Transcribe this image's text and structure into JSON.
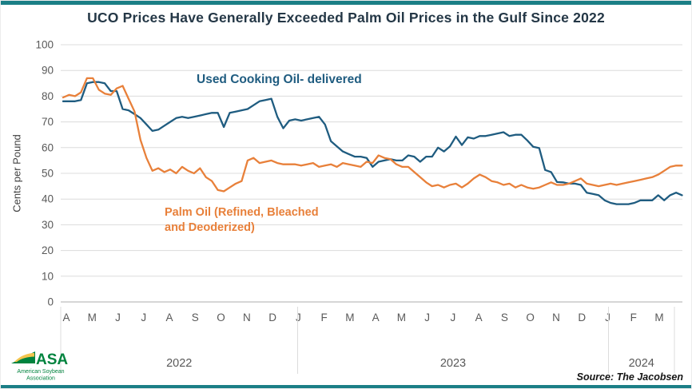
{
  "header": {
    "title": "UCO Prices Have Generally Exceeded Palm Oil Prices in the Gulf Since 2022"
  },
  "footer": {
    "source": "Source: The Jacobsen"
  },
  "logo": {
    "acronym": "ASA",
    "line1": "American Soybean",
    "line2": "Association"
  },
  "annotations": {
    "uco_label": "Used Cooking Oil- delivered",
    "palm_label_line1": "Palm Oil (Refined, Bleached",
    "palm_label_line2": "and Deoderized)"
  },
  "colors": {
    "uco": "#1F5C80",
    "palm": "#E8803A",
    "teal_border": "#1B7F86",
    "title_text": "#243746",
    "grid": "#DCDCDC",
    "axis_line": "#ADADAD",
    "axis_text": "#595959",
    "logo_green": "#00833E",
    "logo_gold": "#F4C54D"
  },
  "chart_data": {
    "type": "line",
    "title": "UCO Prices Have Generally Exceeded Palm Oil Prices in the Gulf Since 2022",
    "xlabel": "",
    "ylabel": "Cents per Pound",
    "ylim": [
      0,
      100
    ],
    "ytick_step": 10,
    "grid": true,
    "legend_position": "inline-annotations",
    "x_tick_labels": [
      "A",
      "M",
      "J",
      "J",
      "A",
      "S",
      "O",
      "N",
      "D",
      "J",
      "F",
      "M",
      "A",
      "M",
      "J",
      "J",
      "A",
      "S",
      "O",
      "N",
      "D",
      "J",
      "F",
      "M"
    ],
    "year_groups": [
      "2022",
      "2023",
      "2024"
    ],
    "series": [
      {
        "name": "Used Cooking Oil- delivered",
        "color_key": "uco",
        "values": [
          78,
          78,
          78,
          78.5,
          85,
          85.5,
          85.5,
          85,
          82,
          82,
          75,
          74.5,
          73,
          71.5,
          69,
          66.5,
          67,
          68.5,
          70,
          71.5,
          72,
          71.5,
          72,
          72.5,
          73,
          73.5,
          73.5,
          68,
          73.5,
          74,
          74.5,
          75,
          76.5,
          78,
          78.5,
          79,
          72,
          67.5,
          70.5,
          71,
          70.5,
          71,
          71.5,
          72,
          69,
          62.5,
          60.5,
          58.5,
          57.5,
          56.5,
          56.5,
          56,
          52.5,
          54.5,
          55,
          55.5,
          55,
          55,
          57,
          56.5,
          54.5,
          56.5,
          56.5,
          60,
          58.5,
          60.5,
          64.3,
          61,
          64,
          63.5,
          64.5,
          64.5,
          65,
          65.5,
          66,
          64.5,
          65,
          65,
          62.8,
          60.3,
          59.8,
          51.3,
          50.5,
          46.6,
          46.5,
          46,
          46,
          45.5,
          42.5,
          42,
          41.5,
          39.5,
          38.5,
          38,
          38,
          38,
          38.5,
          39.5,
          39.5,
          39.5,
          41.5,
          39.5,
          41.5,
          42.5,
          41.5
        ]
      },
      {
        "name": "Palm Oil (Refined, Bleached and Deoderized)",
        "color_key": "palm",
        "values": [
          79.5,
          80.5,
          80,
          81.5,
          87,
          87,
          82.5,
          81,
          80.5,
          83,
          84,
          79,
          74,
          63,
          56,
          51,
          52,
          50.5,
          51.5,
          50,
          52.5,
          51,
          50,
          52,
          48.5,
          47,
          43.5,
          43,
          44.5,
          46,
          47,
          55,
          56,
          54,
          54.5,
          55,
          54,
          53.5,
          53.5,
          53.5,
          53,
          53.5,
          54,
          52.5,
          53,
          53.5,
          52.5,
          54,
          53.5,
          53,
          52.5,
          54.5,
          54,
          57,
          56,
          55.5,
          53.5,
          52.5,
          52.5,
          50.5,
          48.5,
          46.5,
          45,
          45.5,
          44.5,
          45.5,
          46,
          44.5,
          46,
          48,
          49.5,
          48.5,
          47,
          46.5,
          45.5,
          46,
          44.5,
          45.5,
          44.5,
          44,
          44.5,
          45.5,
          46.5,
          45.5,
          45.5,
          46,
          47,
          48,
          46,
          45.5,
          45,
          45.5,
          46,
          45.5,
          46,
          46.5,
          47,
          47.5,
          48,
          48.5,
          49.5,
          51,
          52.5,
          53,
          53
        ]
      }
    ]
  }
}
